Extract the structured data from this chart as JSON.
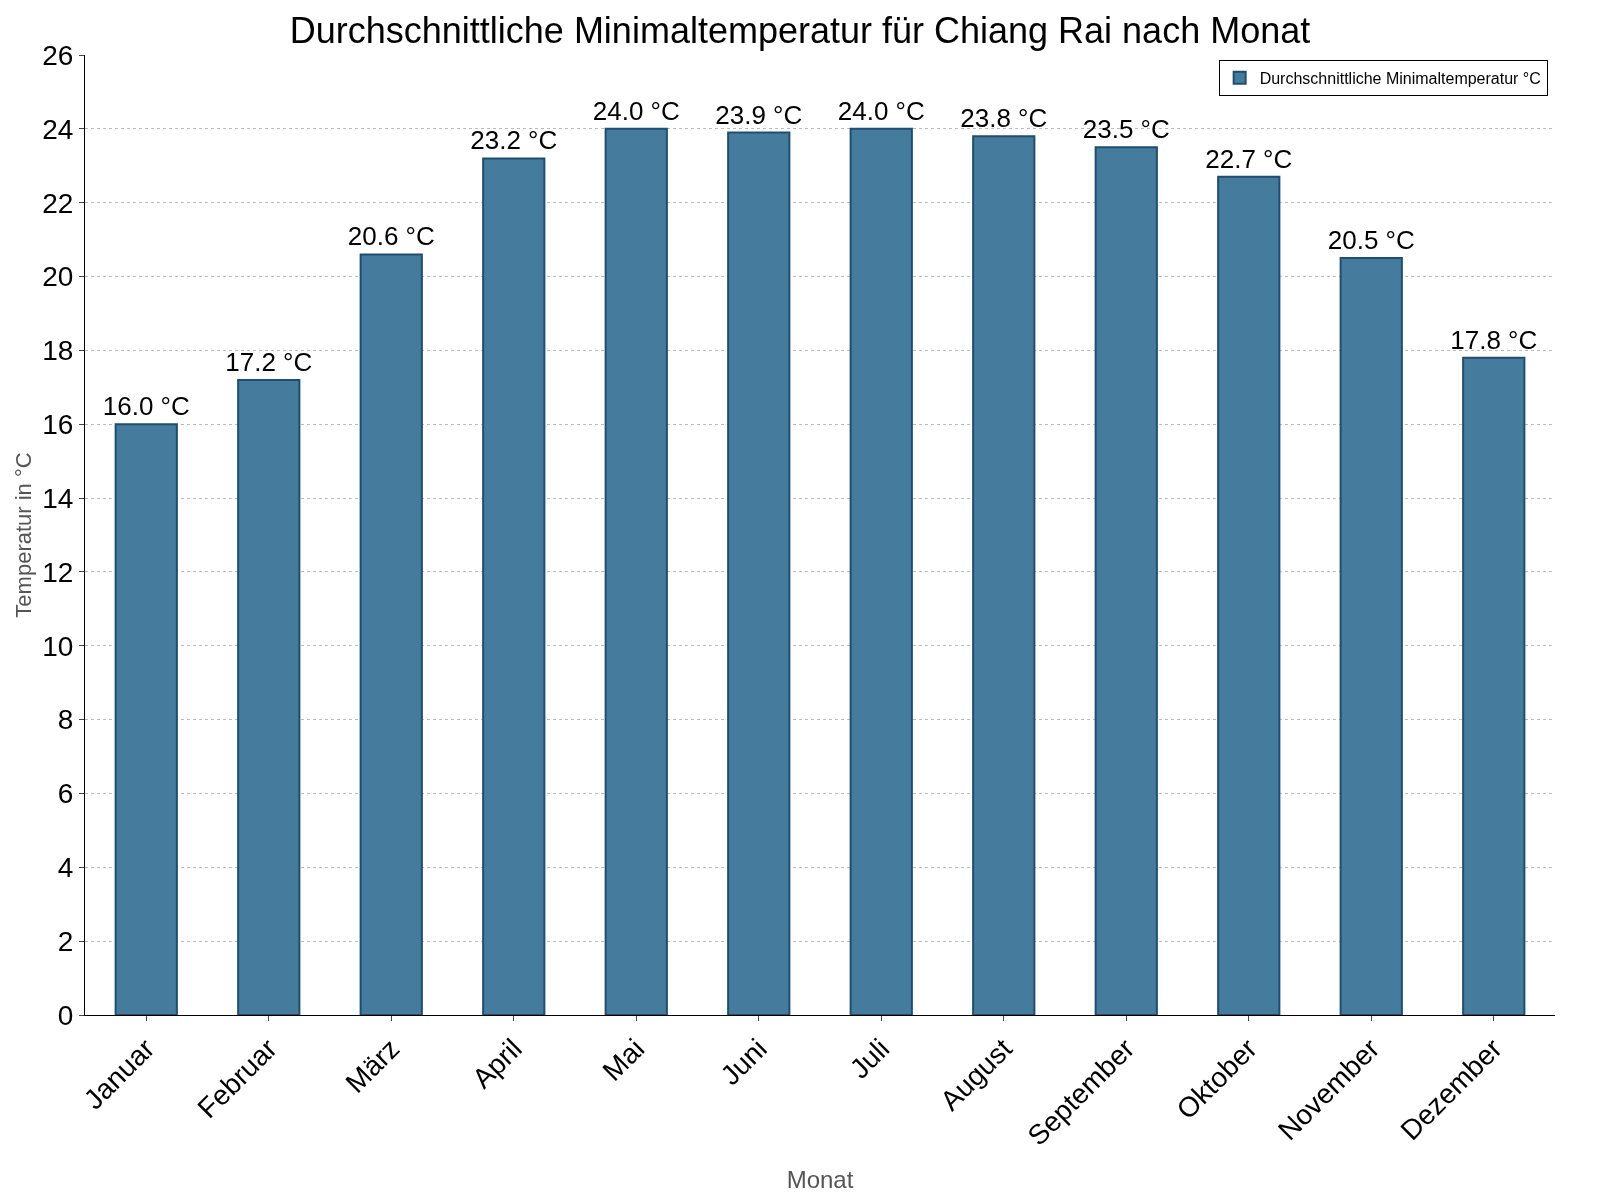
{
  "chart_data": {
    "type": "bar",
    "title": "Durchschnittliche Minimaltemperatur für Chiang Rai nach Monat",
    "xlabel": "Monat",
    "ylabel": "Temperatur in °C",
    "categories": [
      "Januar",
      "Februar",
      "März",
      "April",
      "Mai",
      "Juni",
      "Juli",
      "August",
      "September",
      "Oktober",
      "November",
      "Dezember"
    ],
    "series": [
      {
        "name": "Durchschnittliche Minimaltemperatur °C",
        "color": "#457b9d",
        "values": [
          16.0,
          17.2,
          20.6,
          23.2,
          24.0,
          23.9,
          24.0,
          23.8,
          23.5,
          22.7,
          20.5,
          17.8
        ],
        "value_labels": [
          "16.0 °C",
          "17.2 °C",
          "20.6 °C",
          "23.2 °C",
          "24.0 °C",
          "23.9 °C",
          "24.0 °C",
          "23.8 °C",
          "23.5 °C",
          "22.7 °C",
          "20.5 °C",
          "17.8 °C"
        ]
      }
    ],
    "ylim": [
      0,
      26
    ],
    "yticks": [
      0,
      2,
      4,
      6,
      8,
      10,
      12,
      14,
      16,
      18,
      20,
      22,
      24,
      26
    ],
    "grid": "y",
    "legend": "top right"
  }
}
